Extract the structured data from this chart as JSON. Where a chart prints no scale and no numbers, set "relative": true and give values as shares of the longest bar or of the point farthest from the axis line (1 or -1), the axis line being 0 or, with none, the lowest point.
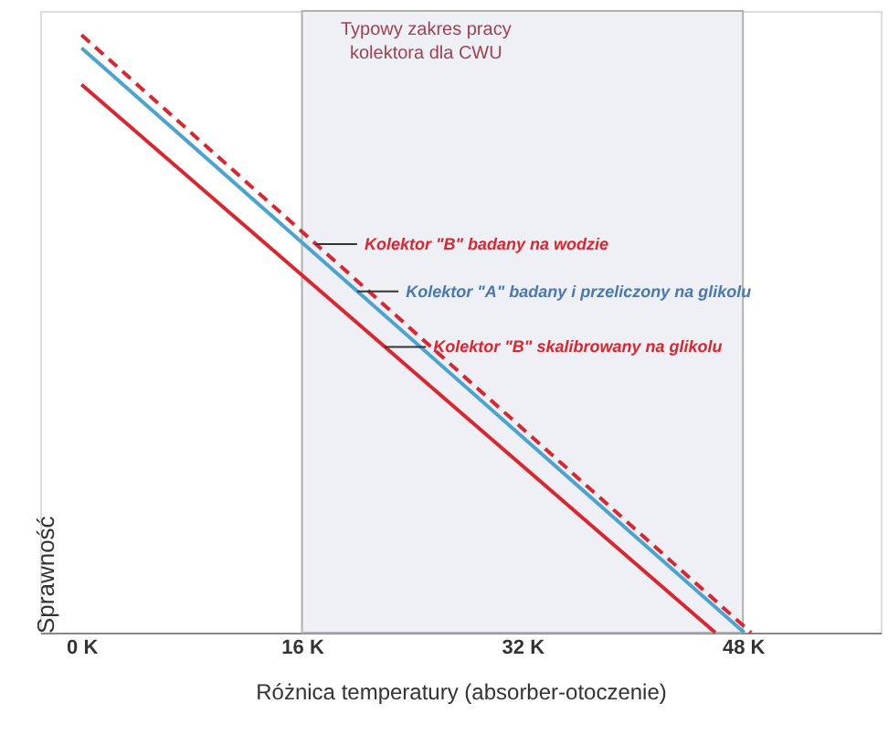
{
  "chart_data": {
    "type": "line",
    "relative": true,
    "xlabel": "Różnica temperatury (absorber-otoczenie)",
    "ylabel": "Sprawność",
    "xlim": [
      -3,
      58
    ],
    "xticks": [
      {
        "value": 0,
        "label": "0 K"
      },
      {
        "value": 16,
        "label": "16 K"
      },
      {
        "value": 32,
        "label": "32 K"
      },
      {
        "value": 48,
        "label": "48 K"
      }
    ],
    "series": [
      {
        "color": "#d9262f",
        "line_style": "dashed",
        "x": [
          0,
          48.6
        ],
        "values": [
          1,
          0
        ]
      },
      {
        "color": "#4aa3d0",
        "line_style": "solid",
        "x": [
          0,
          48.1
        ],
        "values": [
          0.978,
          0
        ]
      },
      {
        "color": "#d9262f",
        "line_style": "solid",
        "x": [
          0,
          46.0
        ],
        "values": [
          0.917,
          0
        ]
      }
    ],
    "bands": [
      {
        "axis": "x",
        "from": 16,
        "to": 48,
        "label": "Typowy zakres pracy\nkolektora dla CWU",
        "color": "#eef0f6"
      }
    ],
    "annotations": [
      {
        "text": "Kolektor \"B\" badany na wodzie",
        "x": 17,
        "y": 0.65
      },
      {
        "text": "Kolektor \"A\" badany i przeliczony na glikolu",
        "x": 20,
        "y": 0.571
      },
      {
        "text": "Kolektor \"B\" skalibrowany na glikolu",
        "x": 22,
        "y": 0.478
      }
    ],
    "grid": false
  }
}
